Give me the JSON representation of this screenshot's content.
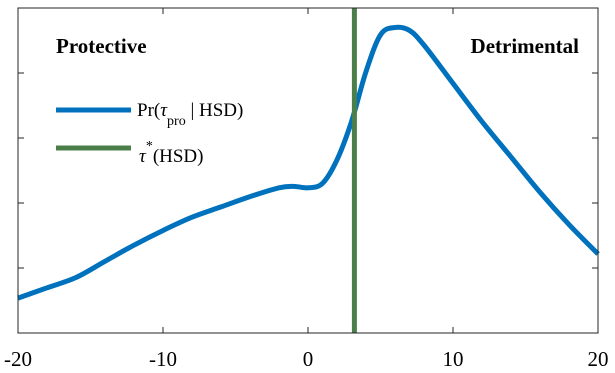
{
  "chart_data": {
    "type": "line",
    "title": "",
    "xlabel": "",
    "ylabel": "",
    "xlim": [
      -20,
      20
    ],
    "ylim": [
      0,
      1
    ],
    "xticks": [
      -20,
      -10,
      0,
      10,
      20
    ],
    "grid": false,
    "legend_position": "top-left",
    "annotations": {
      "left": "Protective",
      "right": "Detrimental"
    },
    "legend": [
      {
        "series": "density",
        "label_main": "Pr(",
        "label_tau": "τ",
        "label_sub": "pro",
        "label_rest": " | HSD)"
      },
      {
        "series": "threshold",
        "label_tau": "τ",
        "label_sup": "*",
        "label_rest": "(HSD)"
      }
    ],
    "series": [
      {
        "id": "density",
        "color": "#0072BD",
        "points": [
          [
            -20,
            0.08
          ],
          [
            -18,
            0.115
          ],
          [
            -16,
            0.15
          ],
          [
            -14,
            0.205
          ],
          [
            -12,
            0.26
          ],
          [
            -10,
            0.31
          ],
          [
            -8,
            0.355
          ],
          [
            -6,
            0.39
          ],
          [
            -4,
            0.425
          ],
          [
            -2,
            0.455
          ],
          [
            -1,
            0.46
          ],
          [
            0,
            0.455
          ],
          [
            1,
            0.47
          ],
          [
            2,
            0.55
          ],
          [
            3,
            0.68
          ],
          [
            4,
            0.85
          ],
          [
            5,
            0.975
          ],
          [
            6,
            1.0
          ],
          [
            7,
            0.99
          ],
          [
            8,
            0.94
          ],
          [
            10,
            0.81
          ],
          [
            12,
            0.68
          ],
          [
            14,
            0.56
          ],
          [
            16,
            0.44
          ],
          [
            18,
            0.33
          ],
          [
            20,
            0.23
          ]
        ]
      },
      {
        "id": "threshold",
        "color": "#4A7F4A",
        "x": 3.2
      }
    ]
  }
}
